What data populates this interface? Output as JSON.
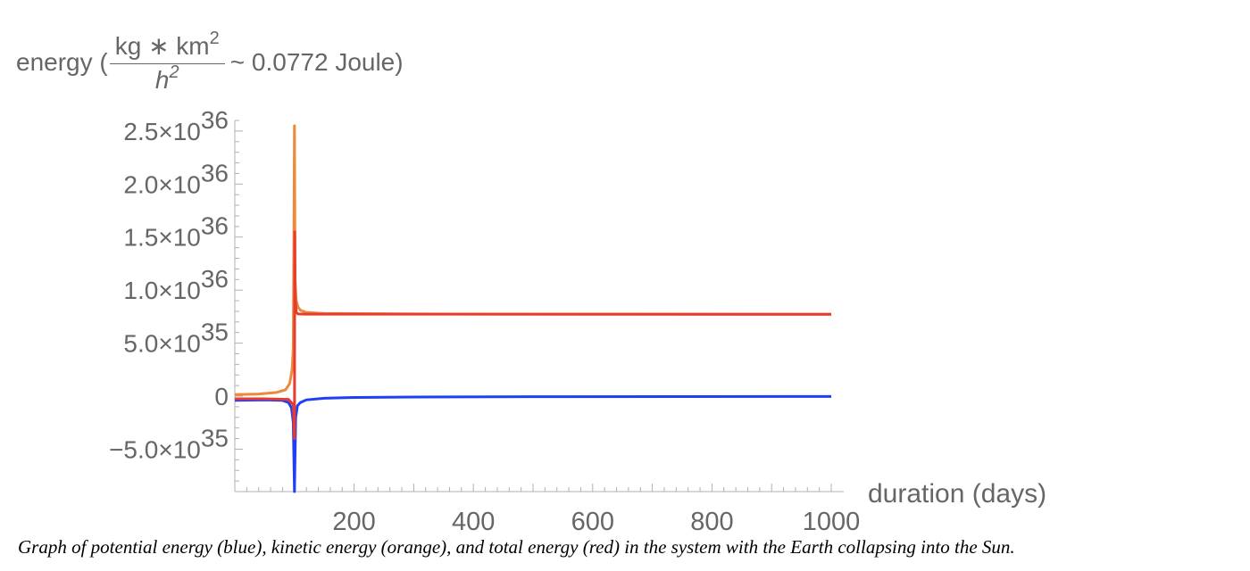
{
  "chart_data": {
    "type": "line",
    "xlabel": "duration (days)",
    "ylabel": {
      "prefix": "energy (",
      "num_base": "kg ∗ km",
      "num_exp": "2",
      "den_base": "h",
      "den_exp": "2",
      "suffix": " ~ 0.0772 Joule)"
    },
    "xlim": [
      0,
      1000
    ],
    "ylim": [
      -9e+35,
      2.6e+36
    ],
    "x_ticks": [
      200,
      400,
      600,
      800,
      1000
    ],
    "x_tick_labels": [
      "200",
      "400",
      "600",
      "800",
      "1000"
    ],
    "y_ticks": [
      {
        "value": 2.5e+36,
        "mantissa": "2.5",
        "exp": "36"
      },
      {
        "value": 2e+36,
        "mantissa": "2.0",
        "exp": "36"
      },
      {
        "value": 1.5e+36,
        "mantissa": "1.5",
        "exp": "36"
      },
      {
        "value": 1e+36,
        "mantissa": "1.0",
        "exp": "36"
      },
      {
        "value": 5e+35,
        "mantissa": "5.0",
        "exp": "35"
      },
      {
        "value": 0,
        "mantissa": "0",
        "exp": ""
      },
      {
        "value": -5e+35,
        "mantissa": "−5.0",
        "exp": "35"
      }
    ],
    "grid": false,
    "series": [
      {
        "color": "#1f3ff5",
        "points": [
          [
            0,
            -4e+34
          ],
          [
            50,
            -3.5e+34
          ],
          [
            80,
            -4e+34
          ],
          [
            90,
            -6e+34
          ],
          [
            95,
            -1.1e+35
          ],
          [
            98,
            -2.5e+35
          ],
          [
            100,
            -9e+35
          ],
          [
            102,
            -2e+35
          ],
          [
            105,
            -9e+34
          ],
          [
            110,
            -6e+34
          ],
          [
            120,
            -3.5e+34
          ],
          [
            150,
            -2e+34
          ],
          [
            200,
            -1.2e+34
          ],
          [
            300,
            -8e+33
          ],
          [
            500,
            -5e+33
          ],
          [
            1000,
            -3e+33
          ]
        ]
      },
      {
        "color": "#ec8a3c",
        "points": [
          [
            0,
            1.5e+34
          ],
          [
            40,
            2e+34
          ],
          [
            70,
            3.5e+34
          ],
          [
            85,
            6e+34
          ],
          [
            92,
            1.2e+35
          ],
          [
            96,
            2.5e+35
          ],
          [
            98,
            4.5e+35
          ],
          [
            100,
            2.55e+36
          ],
          [
            101,
            1.1e+36
          ],
          [
            103,
            9e+35
          ],
          [
            106,
            8.4e+35
          ],
          [
            110,
            8.1e+35
          ],
          [
            120,
            7.9e+35
          ],
          [
            150,
            7.8e+35
          ],
          [
            300,
            7.75e+35
          ],
          [
            1000,
            7.72e+35
          ]
        ]
      },
      {
        "color": "#e83b2e",
        "points": [
          [
            0,
            -2.5e+34
          ],
          [
            50,
            -2.5e+34
          ],
          [
            90,
            -3e+34
          ],
          [
            98,
            -8e+34
          ],
          [
            100,
            -4e+35
          ],
          [
            100.5,
            1.55e+36
          ],
          [
            101,
            9.5e+35
          ],
          [
            103,
            7.9e+35
          ],
          [
            106,
            7.75e+35
          ],
          [
            120,
            7.73e+35
          ],
          [
            1000,
            7.72e+35
          ]
        ]
      }
    ]
  },
  "caption": "Graph of potential energy (blue), kinetic energy (orange), and total energy (red) in the system with the Earth collapsing into the Sun."
}
